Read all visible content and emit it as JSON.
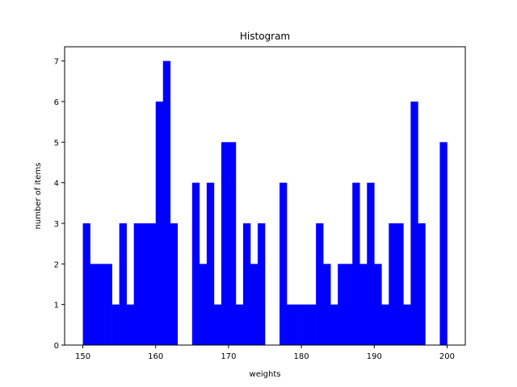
{
  "chart_data": {
    "type": "bar",
    "title": "Histogram",
    "xlabel": "weights",
    "ylabel": "number of items",
    "bar_color": "#0000ff",
    "bin_start": 150,
    "bin_width": 1,
    "counts": [
      3,
      2,
      2,
      2,
      1,
      3,
      1,
      3,
      3,
      3,
      6,
      7,
      3,
      0,
      0,
      4,
      2,
      4,
      1,
      5,
      5,
      1,
      3,
      2,
      3,
      0,
      0,
      4,
      1,
      1,
      1,
      1,
      3,
      2,
      1,
      2,
      2,
      4,
      2,
      4,
      2,
      1,
      3,
      3,
      1,
      6,
      3,
      0,
      0,
      5
    ],
    "xlim": [
      147.5,
      202.5
    ],
    "ylim": [
      0,
      7.35
    ],
    "xticks": [
      150,
      160,
      170,
      180,
      190,
      200
    ],
    "yticks": [
      0,
      1,
      2,
      3,
      4,
      5,
      6,
      7
    ],
    "grid": false
  }
}
